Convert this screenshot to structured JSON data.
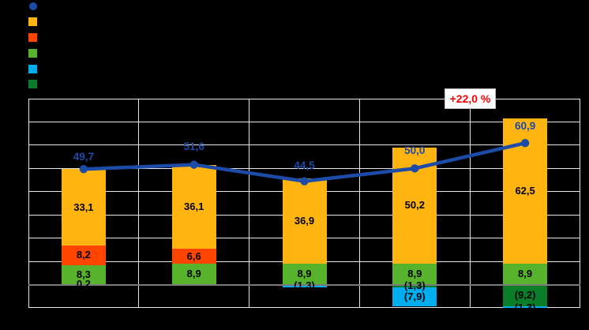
{
  "colors": {
    "background": "#000000",
    "grid": "#E7E7E7",
    "zero_axis": "#7a7a7a",
    "annotation_text": "#FF0000",
    "annotation_border": "#BFBFBF",
    "line_blue": "#1D4BA8"
  },
  "legend": {
    "items": [
      {
        "series": "total-line",
        "marker": "circle",
        "color": "#1D4BA8",
        "label": ""
      },
      {
        "series": "orange",
        "marker": "square",
        "color": "#FFB410",
        "label": ""
      },
      {
        "series": "red",
        "marker": "square",
        "color": "#FF4500",
        "label": ""
      },
      {
        "series": "green",
        "marker": "square",
        "color": "#58B32C",
        "label": ""
      },
      {
        "series": "cyan",
        "marker": "square",
        "color": "#00AEEF",
        "label": ""
      },
      {
        "series": "darkgreen",
        "marker": "square",
        "color": "#0A7D28",
        "label": ""
      }
    ]
  },
  "chart_data": {
    "type": "bar",
    "subtype": "stacked-bars-with-total-line",
    "title": "",
    "categories": [
      "",
      "",
      "",
      "",
      ""
    ],
    "ylim": [
      -10,
      80
    ],
    "grid_step": 10,
    "grid": true,
    "legend_position": "top-left",
    "series": [
      {
        "name": "orange",
        "color": "#FFB410",
        "values": [
          33.1,
          36.1,
          36.9,
          50.2,
          62.5
        ],
        "labels": [
          "33,1",
          "36,1",
          "36,9",
          "50,2",
          "62,5"
        ]
      },
      {
        "name": "red",
        "color": "#FF4500",
        "values": [
          8.2,
          6.6,
          0,
          0,
          0
        ],
        "labels": [
          "8,2",
          "6,6",
          "",
          "",
          ""
        ]
      },
      {
        "name": "green",
        "color": "#58B32C",
        "values": [
          8.3,
          8.9,
          8.9,
          8.9,
          8.9
        ],
        "labels": [
          "8,3",
          "8,9",
          "8,9",
          "8,9",
          "8,9"
        ]
      },
      {
        "name": "cyan",
        "color": "#00AEEF",
        "values": [
          0.2,
          0,
          -1.3,
          -7.9,
          -1.3
        ],
        "labels": [
          "0,2",
          "",
          "(1,3)",
          "(7,9)",
          "(1,3)"
        ]
      },
      {
        "name": "darkgreen",
        "color": "#0A7D28",
        "values": [
          0,
          0,
          0,
          -1.3,
          -9.2
        ],
        "labels": [
          "",
          "",
          "",
          "(1,3)",
          "(9,2)"
        ]
      }
    ],
    "stack_order_positive": [
      "cyan",
      "green",
      "red",
      "orange"
    ],
    "stack_order_negative": [
      "darkgreen",
      "cyan"
    ],
    "line_series": {
      "name": "total",
      "color": "#1D4BA8",
      "values": [
        49.7,
        51.6,
        44.5,
        50.0,
        60.9
      ],
      "labels": [
        "49,7",
        "51,6",
        "44,5",
        "50,0",
        "60,9"
      ]
    },
    "annotation": "+22,0 %"
  }
}
